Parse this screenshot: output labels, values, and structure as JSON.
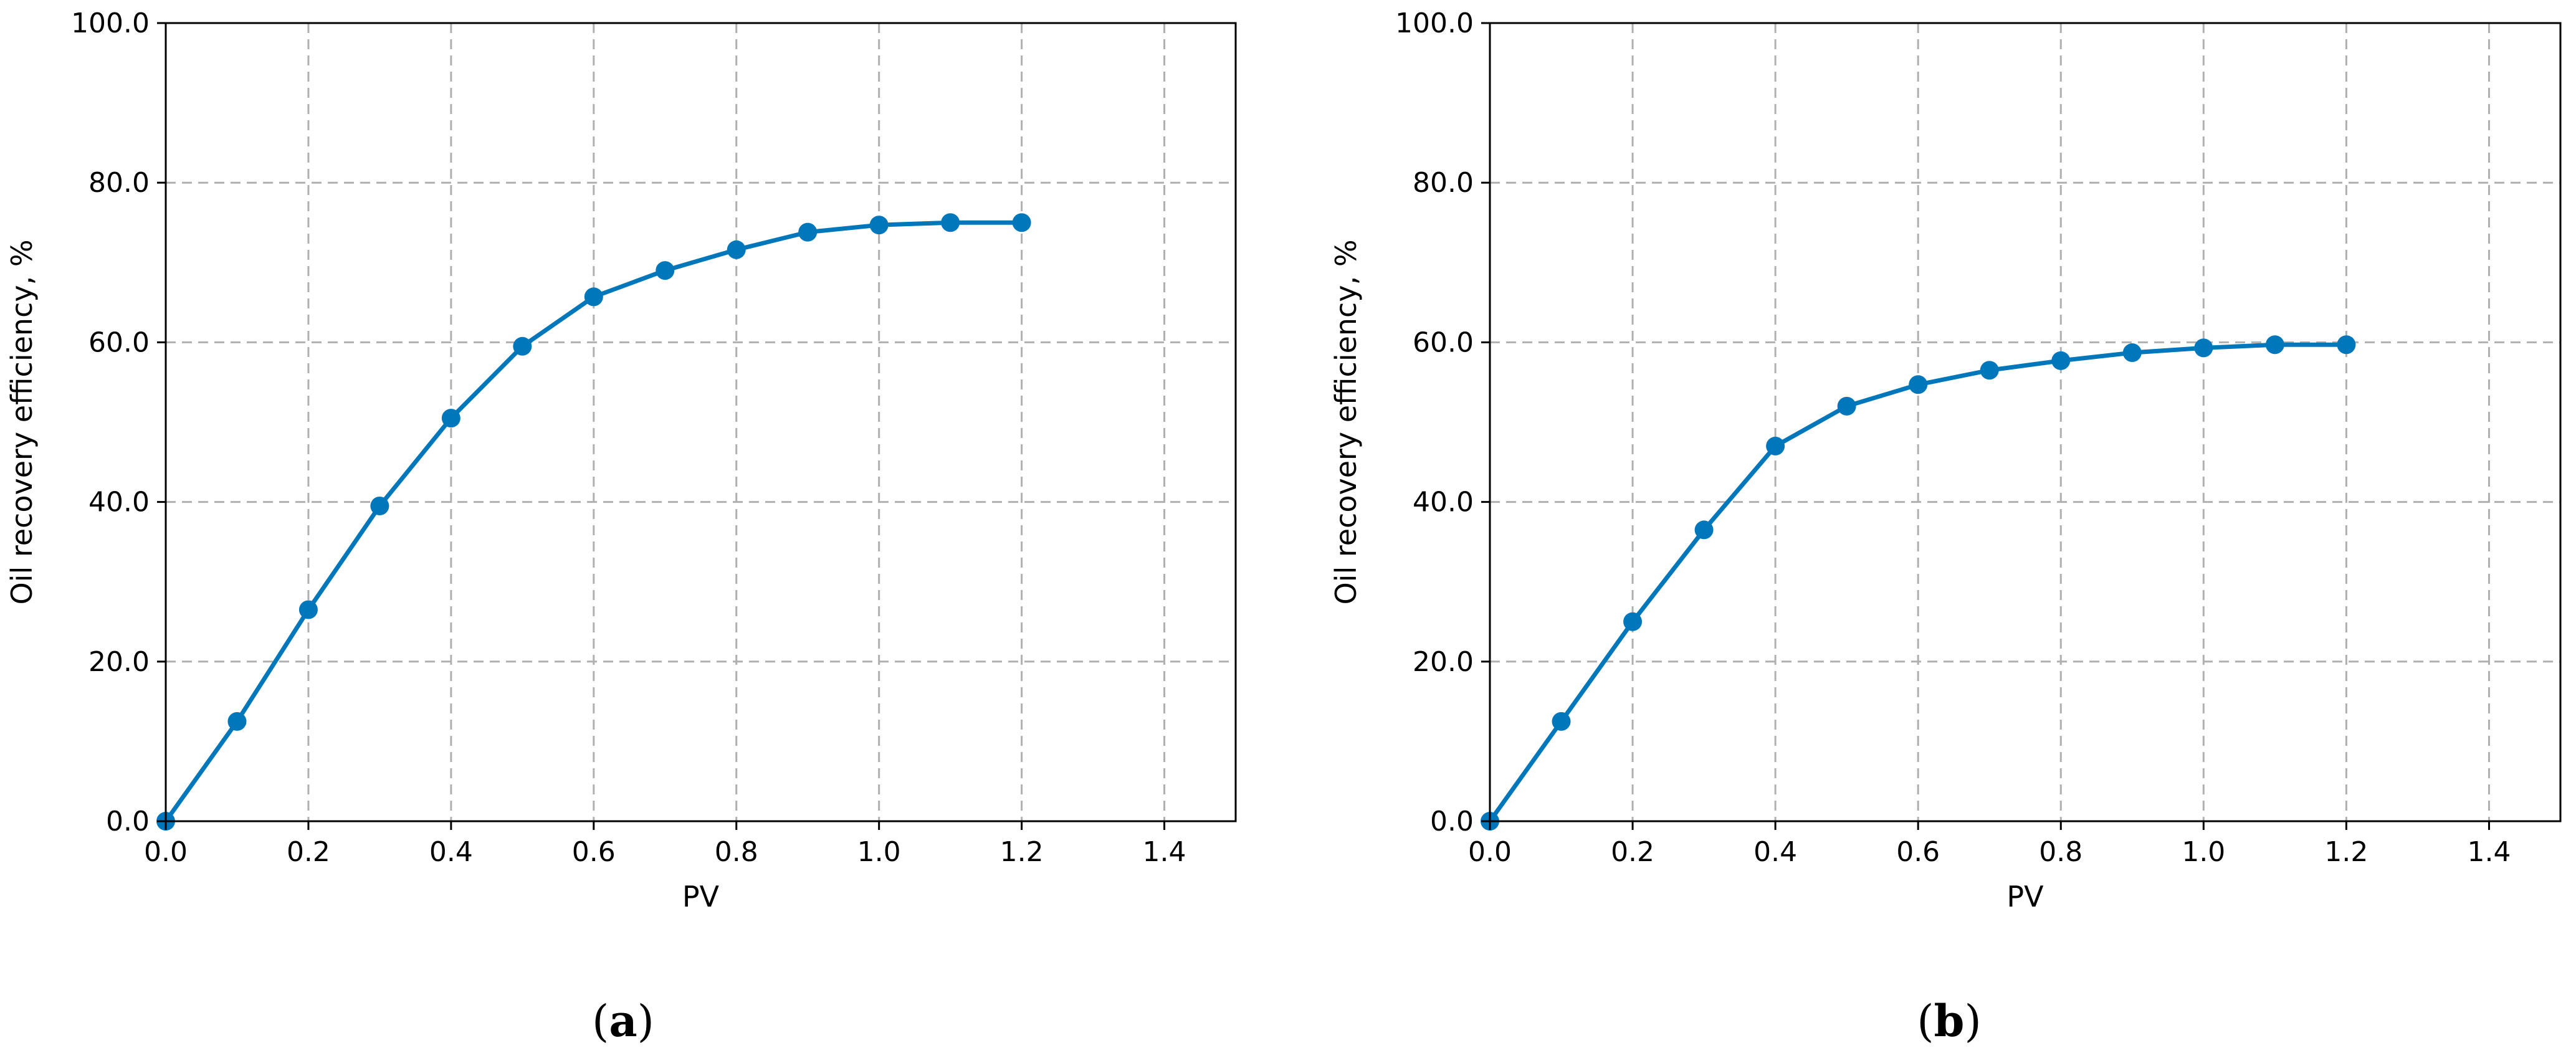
{
  "colors": {
    "series": "#0077bb",
    "grid": "#b0b0b0",
    "axis": "#000000"
  },
  "chart_data": [
    {
      "type": "line",
      "panel_label": "a",
      "xlabel": "PV",
      "ylabel": "Oil recovery efficiency, %",
      "xlim": [
        0,
        1.5
      ],
      "ylim": [
        0,
        100
      ],
      "x_ticks": [
        "0.0",
        "0.2",
        "0.4",
        "0.6",
        "0.8",
        "1.0",
        "1.2",
        "1.4"
      ],
      "y_ticks": [
        "0.0",
        "20.0",
        "40.0",
        "60.0",
        "80.0",
        "100.0"
      ],
      "grid": true,
      "series": [
        {
          "x": [
            0.0,
            0.1,
            0.2,
            0.3,
            0.4,
            0.5,
            0.6,
            0.7,
            0.8,
            0.9,
            1.0,
            1.1,
            1.2
          ],
          "y": [
            0.0,
            12.5,
            26.5,
            39.5,
            50.5,
            59.5,
            65.7,
            69.0,
            71.6,
            73.8,
            74.7,
            75.0,
            75.0
          ]
        }
      ]
    },
    {
      "type": "line",
      "panel_label": "b",
      "xlabel": "PV",
      "ylabel": "Oil recovery efficiency, %",
      "xlim": [
        0,
        1.5
      ],
      "ylim": [
        0,
        100
      ],
      "x_ticks": [
        "0.0",
        "0.2",
        "0.4",
        "0.6",
        "0.8",
        "1.0",
        "1.2",
        "1.4"
      ],
      "y_ticks": [
        "0.0",
        "20.0",
        "40.0",
        "60.0",
        "80.0",
        "100.0"
      ],
      "grid": true,
      "series": [
        {
          "x": [
            0.0,
            0.1,
            0.2,
            0.3,
            0.4,
            0.5,
            0.6,
            0.7,
            0.8,
            0.9,
            1.0,
            1.1,
            1.2
          ],
          "y": [
            0.0,
            12.5,
            25.0,
            36.5,
            47.0,
            52.0,
            54.7,
            56.5,
            57.7,
            58.7,
            59.3,
            59.7,
            59.7
          ]
        }
      ]
    }
  ]
}
